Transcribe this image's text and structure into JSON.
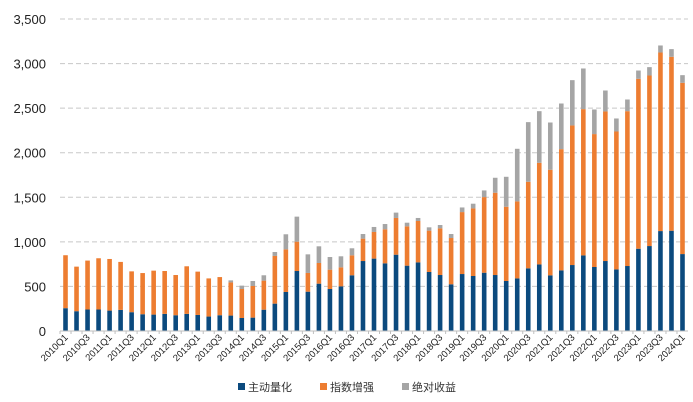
{
  "chart_data": {
    "type": "bar",
    "stacked": true,
    "title": "",
    "xlabel": "",
    "ylabel": "",
    "ylim": [
      0,
      3500
    ],
    "yticks": [
      "0",
      "500",
      "1,000",
      "1,500",
      "2,000",
      "2,500",
      "3,000",
      "3,500"
    ],
    "ytick_values": [
      0,
      500,
      1000,
      1500,
      2000,
      2500,
      3000,
      3500
    ],
    "grid": "horizontal dashed",
    "legend_position": "bottom",
    "categories": [
      "2010Q1",
      "2010Q2",
      "2010Q3",
      "2010Q4",
      "2011Q1",
      "2011Q2",
      "2011Q3",
      "2011Q4",
      "2012Q1",
      "2012Q2",
      "2012Q3",
      "2012Q4",
      "2013Q1",
      "2013Q2",
      "2013Q3",
      "2013Q4",
      "2014Q1",
      "2014Q2",
      "2014Q3",
      "2014Q4",
      "2015Q1",
      "2015Q2",
      "2015Q3",
      "2015Q4",
      "2016Q1",
      "2016Q2",
      "2016Q3",
      "2016Q4",
      "2017Q1",
      "2017Q2",
      "2017Q3",
      "2017Q4",
      "2018Q1",
      "2018Q2",
      "2018Q3",
      "2018Q4",
      "2019Q1",
      "2019Q2",
      "2019Q3",
      "2019Q4",
      "2020Q1",
      "2020Q2",
      "2020Q3",
      "2020Q4",
      "2021Q1",
      "2021Q2",
      "2021Q3",
      "2021Q4",
      "2022Q1",
      "2022Q2",
      "2022Q3",
      "2022Q4",
      "2023Q1",
      "2023Q2",
      "2023Q3",
      "2023Q4",
      "2024Q1"
    ],
    "series": [
      {
        "name": "主动量化",
        "color": "#0B4A7E",
        "values": [
          256,
          222,
          241,
          241,
          229,
          237,
          211,
          188,
          184,
          192,
          177,
          192,
          180,
          162,
          177,
          173,
          146,
          150,
          239,
          307,
          438,
          673,
          441,
          531,
          471,
          501,
          625,
          785,
          812,
          759,
          856,
          733,
          770,
          662,
          628,
          524,
          639,
          617,
          654,
          628,
          561,
          590,
          703,
          747,
          624,
          680,
          740,
          848,
          718,
          785,
          691,
          729,
          923,
          953,
          1121,
          1125,
          863
        ]
      },
      {
        "name": "指数增强",
        "color": "#ED7D31",
        "values": [
          594,
          500,
          549,
          575,
          579,
          538,
          458,
          462,
          493,
          481,
          451,
          534,
          486,
          428,
          428,
          372,
          325,
          355,
          326,
          535,
          478,
          329,
          210,
          232,
          217,
          213,
          224,
          251,
          299,
          382,
          412,
          441,
          464,
          464,
          524,
          519,
          695,
          758,
          848,
          923,
          833,
          864,
          971,
          1140,
          1185,
          1360,
          1566,
          1641,
          1491,
          1678,
          1547,
          1737,
          1906,
          1913,
          2003,
          1951,
          1921
        ]
      },
      {
        "name": "绝对收益",
        "color": "#A5A5A5",
        "values": [
          0,
          0,
          0,
          0,
          0,
          0,
          0,
          0,
          0,
          0,
          0,
          0,
          0,
          0,
          0,
          23,
          38,
          56,
          60,
          44,
          169,
          281,
          209,
          187,
          142,
          124,
          79,
          52,
          56,
          59,
          60,
          41,
          34,
          37,
          37,
          45,
          52,
          53,
          75,
          168,
          336,
          590,
          669,
          579,
          530,
          512,
          508,
          456,
          276,
          235,
          146,
          131,
          93,
          94,
          79,
          86,
          86
        ]
      }
    ]
  }
}
